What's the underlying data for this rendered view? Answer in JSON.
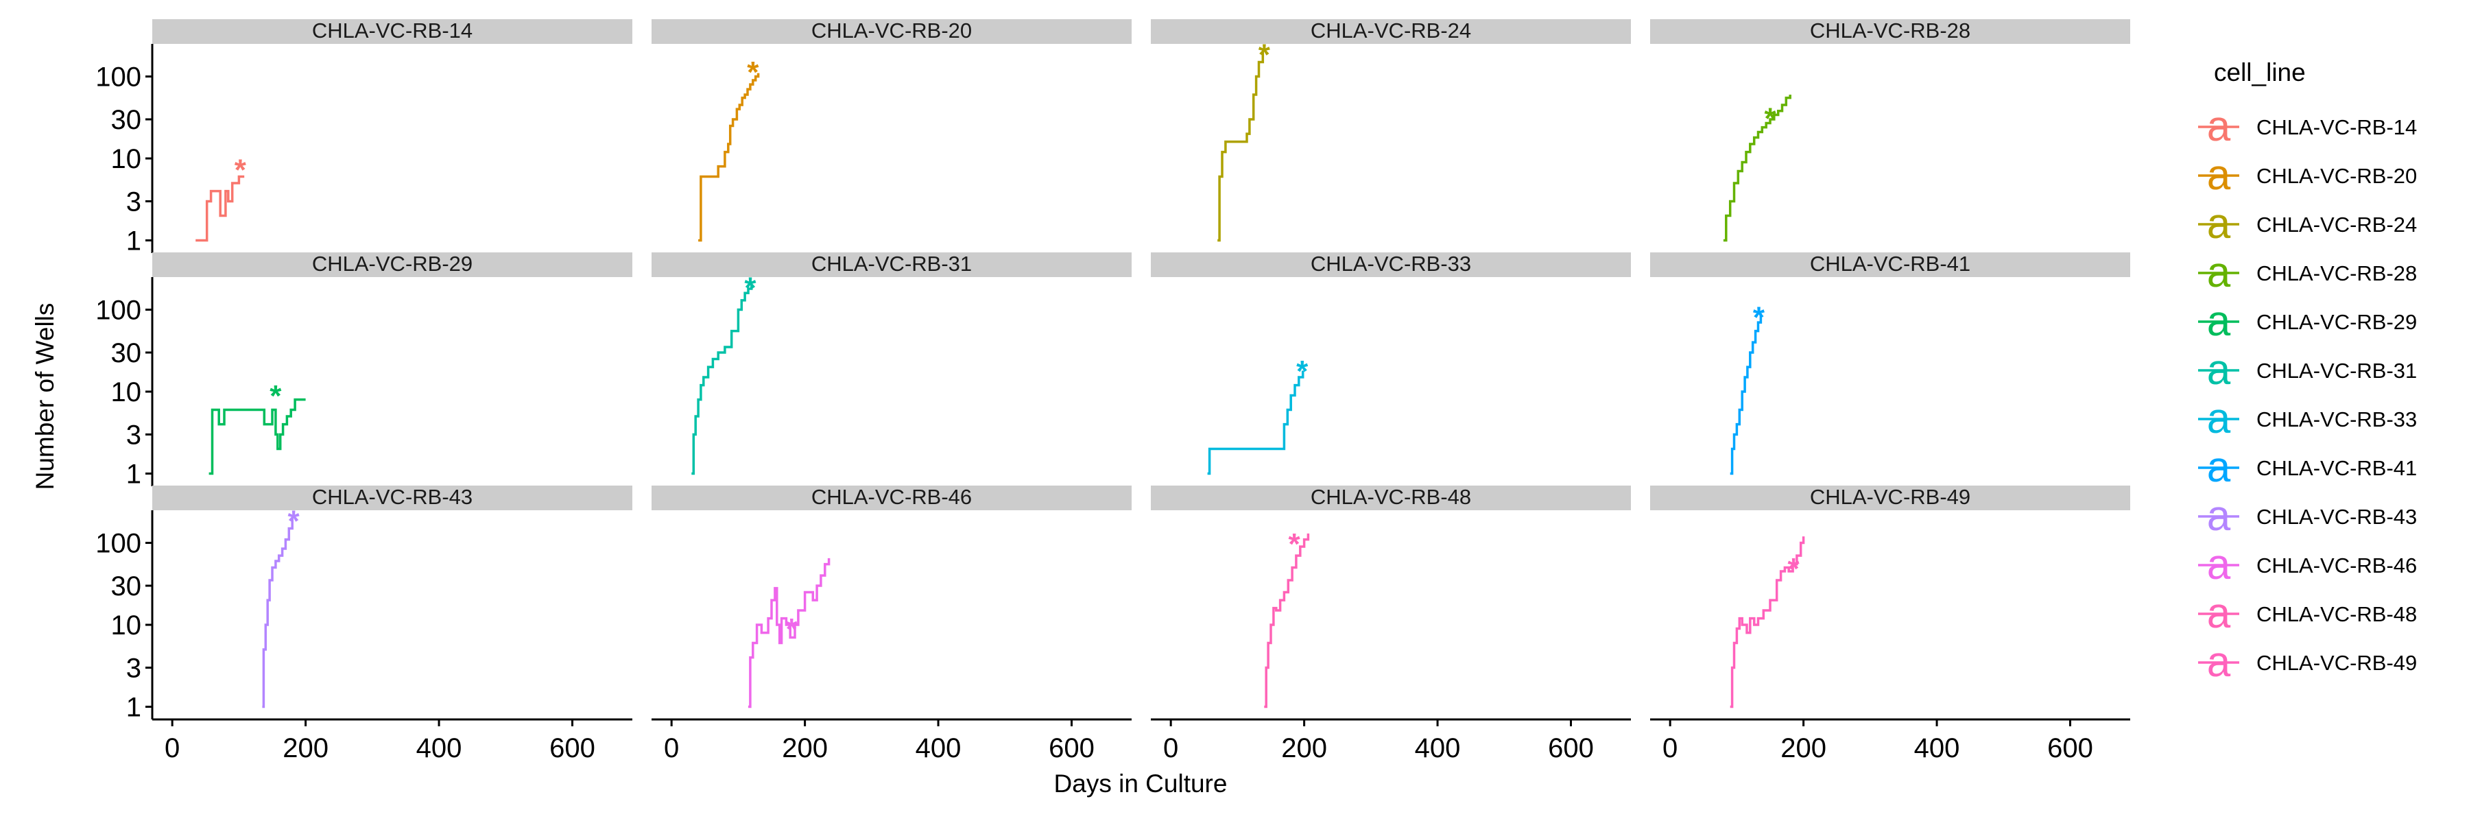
{
  "chart_data": {
    "type": "line",
    "subtype": "step",
    "xlabel": "Days in Culture",
    "ylabel": "Number of Wells",
    "x_ticks": [
      0,
      200,
      400,
      600
    ],
    "xlim": [
      -30,
      690
    ],
    "y_scale": "log",
    "y_ticks": [
      1,
      3,
      10,
      30,
      100
    ],
    "ylim": [
      0.7,
      250
    ],
    "legend": {
      "title": "cell_line",
      "position": "right",
      "key_glyph": "a"
    },
    "facets": [
      {
        "name": "CHLA-VC-RB-14",
        "color": "#F8766D",
        "x": [
          35,
          48,
          52,
          58,
          63,
          72,
          80,
          84,
          90,
          96,
          100,
          108
        ],
        "y": [
          1,
          1,
          3,
          4,
          4,
          2,
          4,
          3,
          5,
          5,
          6,
          6
        ],
        "marker": {
          "x": 102,
          "y": 9
        }
      },
      {
        "name": "CHLA-VC-RB-20",
        "color": "#DB8E00",
        "x": [
          40,
          44,
          62,
          70,
          80,
          85,
          88,
          92,
          98,
          102,
          106,
          110,
          114,
          118,
          122,
          126,
          130
        ],
        "y": [
          1,
          6,
          6,
          8,
          12,
          15,
          25,
          30,
          40,
          45,
          55,
          60,
          70,
          80,
          90,
          100,
          110
        ],
        "marker": {
          "x": 122,
          "y": 140
        }
      },
      {
        "name": "CHLA-VC-RB-24",
        "color": "#AEA200",
        "x": [
          70,
          73,
          77,
          82,
          110,
          114,
          118,
          124,
          128,
          132,
          138
        ],
        "y": [
          1,
          6,
          12,
          16,
          16,
          20,
          30,
          60,
          100,
          150,
          200
        ],
        "marker": {
          "x": 140,
          "y": 230
        }
      },
      {
        "name": "CHLA-VC-RB-28",
        "color": "#64B200",
        "x": [
          80,
          84,
          90,
          96,
          102,
          108,
          114,
          120,
          126,
          132,
          138,
          144,
          150,
          156,
          162,
          168,
          174,
          180
        ],
        "y": [
          1,
          2,
          3,
          5,
          7,
          9,
          12,
          15,
          18,
          21,
          24,
          27,
          30,
          34,
          38,
          45,
          55,
          60
        ],
        "marker": {
          "x": 150,
          "y": 38
        }
      },
      {
        "name": "CHLA-VC-RB-29",
        "color": "#00BD5C",
        "x": [
          55,
          60,
          70,
          78,
          90,
          120,
          138,
          150,
          155,
          158,
          162,
          166,
          172,
          178,
          184,
          200
        ],
        "y": [
          1,
          6,
          4,
          6,
          6,
          6,
          4,
          6,
          3,
          2,
          3,
          4,
          5,
          6,
          8,
          8
        ],
        "marker": {
          "x": 155,
          "y": 11
        }
      },
      {
        "name": "CHLA-VC-RB-31",
        "color": "#00C1A7",
        "x": [
          30,
          33,
          36,
          40,
          44,
          48,
          55,
          62,
          70,
          80,
          90,
          100,
          105,
          110,
          115,
          120
        ],
        "y": [
          1,
          3,
          5,
          8,
          12,
          15,
          20,
          25,
          30,
          35,
          55,
          100,
          130,
          160,
          180,
          200
        ],
        "marker": {
          "x": 118,
          "y": 230
        }
      },
      {
        "name": "CHLA-VC-RB-33",
        "color": "#00BADE",
        "x": [
          55,
          58,
          165,
          170,
          175,
          180,
          186,
          192,
          198
        ],
        "y": [
          1,
          2,
          2,
          4,
          6,
          9,
          12,
          15,
          18
        ],
        "marker": {
          "x": 197,
          "y": 22
        }
      },
      {
        "name": "CHLA-VC-RB-41",
        "color": "#00A6FF",
        "x": [
          90,
          93,
          96,
          100,
          104,
          108,
          112,
          116,
          120,
          124,
          128,
          132,
          136
        ],
        "y": [
          1,
          2,
          3,
          4,
          6,
          10,
          15,
          20,
          30,
          40,
          55,
          70,
          90
        ],
        "marker": {
          "x": 133,
          "y": 100
        }
      },
      {
        "name": "CHLA-VC-RB-43",
        "color": "#B385FF",
        "x": [
          135,
          137,
          140,
          143,
          146,
          150,
          155,
          160,
          165,
          170,
          175,
          180
        ],
        "y": [
          1,
          5,
          10,
          20,
          35,
          50,
          60,
          70,
          85,
          110,
          150,
          200
        ],
        "marker": {
          "x": 182,
          "y": 230
        }
      },
      {
        "name": "CHLA-VC-RB-46",
        "color": "#EF67EB",
        "x": [
          115,
          118,
          122,
          128,
          135,
          145,
          150,
          155,
          158,
          162,
          165,
          172,
          178,
          185,
          190,
          200,
          206,
          212,
          218,
          224,
          230,
          236
        ],
        "y": [
          1,
          4,
          6,
          10,
          8,
          12,
          20,
          28,
          10,
          6,
          12,
          10,
          7,
          10,
          15,
          25,
          25,
          20,
          30,
          40,
          55,
          65
        ],
        "marker": {
          "x": 180,
          "y": 11
        }
      },
      {
        "name": "CHLA-VC-RB-48",
        "color": "#FF63B6",
        "x": [
          140,
          143,
          146,
          150,
          154,
          158,
          164,
          170,
          176,
          182,
          188,
          194,
          200,
          206
        ],
        "y": [
          1,
          3,
          6,
          10,
          16,
          15,
          20,
          25,
          35,
          50,
          70,
          90,
          110,
          130
        ],
        "marker": {
          "x": 185,
          "y": 120
        }
      },
      {
        "name": "CHLA-VC-RB-49",
        "color": "#FF62BC",
        "x": [
          90,
          93,
          96,
          100,
          104,
          108,
          115,
          120,
          126,
          132,
          140,
          150,
          160,
          166,
          172,
          178,
          184,
          190,
          196,
          200
        ],
        "y": [
          1,
          3,
          6,
          9,
          12,
          10,
          8,
          12,
          10,
          12,
          15,
          20,
          35,
          45,
          50,
          45,
          55,
          70,
          100,
          120
        ],
        "marker": {
          "x": 185,
          "y": 60
        }
      }
    ]
  }
}
